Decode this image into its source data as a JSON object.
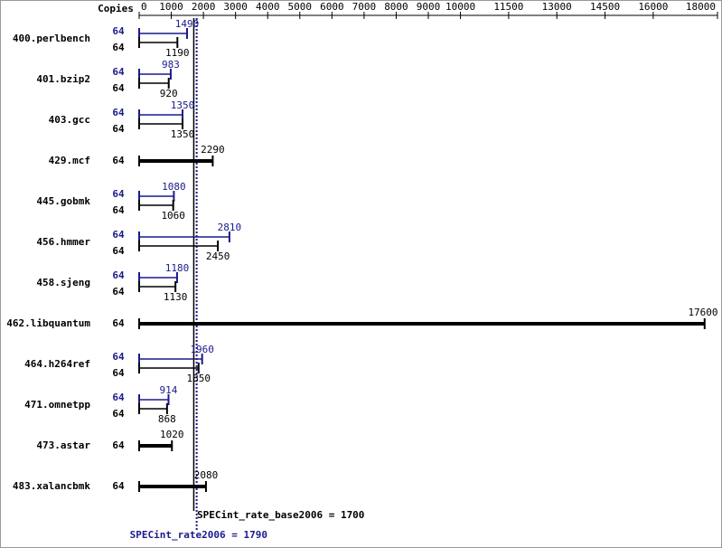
{
  "chart_data": {
    "type": "bar",
    "orientation": "horizontal",
    "copies_label": "Copies",
    "categories": [
      "400.perlbench",
      "401.bzip2",
      "403.gcc",
      "429.mcf",
      "445.gobmk",
      "456.hmmer",
      "458.sjeng",
      "462.libquantum",
      "464.h264ref",
      "471.omnetpp",
      "473.astar",
      "483.xalancbmk"
    ],
    "series": [
      {
        "color": "#1a1a8c",
        "copies": [
          64,
          64,
          64,
          null,
          64,
          64,
          64,
          null,
          64,
          64,
          null,
          null
        ],
        "values": [
          1490,
          983,
          1350,
          null,
          1080,
          2810,
          1180,
          null,
          1960,
          914,
          null,
          null
        ]
      },
      {
        "color": "#000000",
        "copies": [
          64,
          64,
          64,
          64,
          64,
          64,
          64,
          64,
          64,
          64,
          64,
          64
        ],
        "values": [
          1190,
          920,
          1350,
          2290,
          1060,
          2450,
          1130,
          17600,
          1850,
          868,
          1020,
          2080
        ]
      }
    ],
    "xlim": [
      0,
      18000
    ],
    "xticks": [
      0,
      1000,
      2000,
      3000,
      4000,
      5000,
      6000,
      7000,
      8000,
      9000,
      10000,
      11500,
      13000,
      14500,
      16000,
      18000
    ],
    "reference_lines": [
      {
        "label": "SPECint_rate_base2006 = 1700",
        "value": 1700,
        "color": "#000000"
      },
      {
        "label": "SPECint_rate2006 = 1790",
        "value": 1790,
        "color": "#1a1a8c"
      }
    ]
  }
}
